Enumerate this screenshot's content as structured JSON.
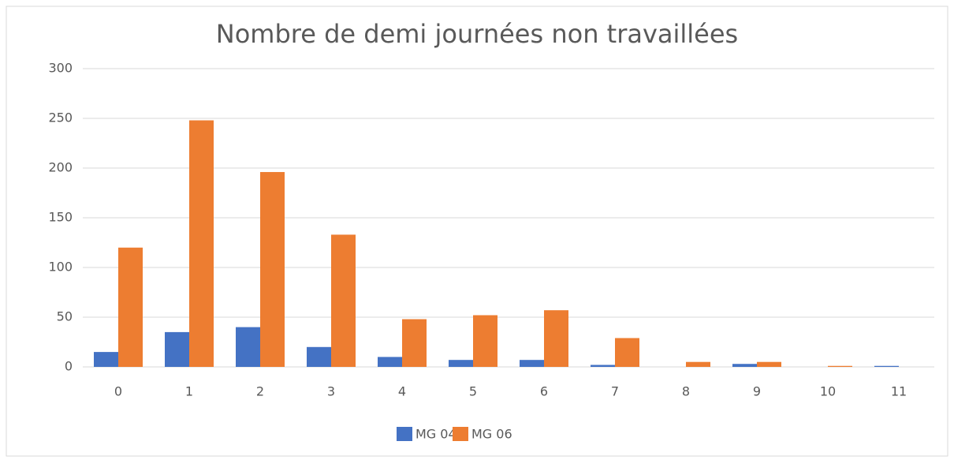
{
  "chart_data": {
    "type": "bar",
    "title": "Nombre de demi journées non travaillées",
    "categories": [
      "0",
      "1",
      "2",
      "3",
      "4",
      "5",
      "6",
      "7",
      "8",
      "9",
      "10",
      "11"
    ],
    "series": [
      {
        "name": "MG 04",
        "color": "#4472c4",
        "values": [
          15,
          35,
          40,
          20,
          10,
          7,
          7,
          2,
          0,
          3,
          0,
          1
        ]
      },
      {
        "name": "MG 06",
        "color": "#ed7d31",
        "values": [
          120,
          248,
          196,
          133,
          48,
          52,
          57,
          29,
          5,
          5,
          1,
          0
        ]
      }
    ],
    "ylim": [
      0,
      300
    ],
    "yticks": [
      0,
      50,
      100,
      150,
      200,
      250,
      300
    ],
    "grid": true,
    "legend": "bottom"
  }
}
